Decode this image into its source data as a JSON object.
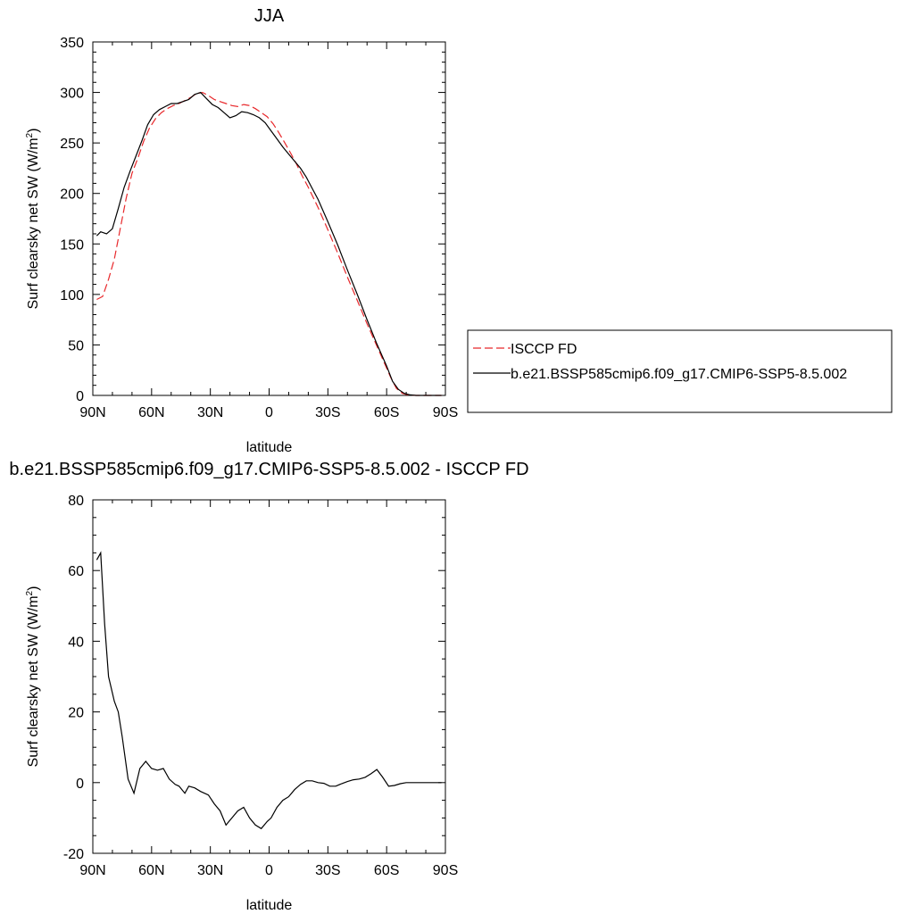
{
  "chart_data": [
    {
      "type": "line",
      "title": "JJA",
      "xlabel": "latitude",
      "ylabel_main": "Surf clearsky net SW (W/m",
      "ylabel_sup": "2",
      "ylabel_tail": ")",
      "xlim": [
        90,
        -90
      ],
      "ylim": [
        0,
        350
      ],
      "xticks": [
        90,
        60,
        30,
        0,
        -30,
        -60,
        -90
      ],
      "xtick_labels": [
        "90N",
        "60N",
        "30N",
        "0",
        "30S",
        "60S",
        "90S"
      ],
      "yticks": [
        0,
        50,
        100,
        150,
        200,
        250,
        300,
        350
      ],
      "ytick_labels": [
        "0",
        "50",
        "100",
        "150",
        "200",
        "250",
        "300",
        "350"
      ],
      "legend_position": "right",
      "series": [
        {
          "name": "ISCCP FD",
          "color": "#e8282b",
          "dash": "dashed",
          "x": [
            88,
            85,
            82,
            79,
            76,
            73,
            70,
            67,
            64,
            61,
            58,
            55,
            52,
            49,
            46,
            43,
            40,
            37,
            34,
            31,
            28,
            25,
            22,
            19,
            16,
            13,
            10,
            7,
            4,
            1,
            -2,
            -5,
            -8,
            -11,
            -14,
            -17,
            -20,
            -25,
            -30,
            -35,
            -40,
            -45,
            -50,
            -55,
            -60,
            -62,
            -65,
            -68,
            -71,
            -75,
            -80,
            -85,
            -88
          ],
          "values": [
            95,
            98,
            115,
            135,
            165,
            195,
            220,
            235,
            252,
            265,
            274,
            280,
            284,
            287,
            289,
            292,
            295,
            299,
            300,
            297,
            293,
            291,
            289,
            287,
            286,
            288,
            287,
            284,
            280,
            276,
            269,
            260,
            250,
            240,
            229,
            217,
            206,
            186,
            164,
            141,
            117,
            94,
            71,
            49,
            27,
            18,
            7,
            2,
            0.5,
            0,
            0,
            0,
            0
          ]
        },
        {
          "name": "b.e21.BSSP585cmip6.f09_g17.CMIP6-SSP5-8.5.002",
          "color": "#000000",
          "dash": "solid",
          "x": [
            88,
            86,
            83,
            80,
            77,
            74,
            71,
            68,
            65,
            62,
            59,
            56,
            53,
            50,
            47,
            44,
            41,
            38,
            35,
            32,
            29,
            26,
            23,
            20,
            17,
            14,
            11,
            8,
            5,
            2,
            -1,
            -4,
            -7,
            -10,
            -13,
            -16,
            -19,
            -22,
            -25,
            -30,
            -35,
            -40,
            -45,
            -50,
            -55,
            -60,
            -63,
            -66,
            -69,
            -72,
            -75,
            -80,
            -85,
            -88
          ],
          "values": [
            158,
            162,
            160,
            165,
            185,
            206,
            222,
            237,
            252,
            268,
            278,
            283,
            286,
            289,
            289,
            291,
            293,
            298,
            300,
            294,
            288,
            285,
            280,
            275,
            277,
            281,
            280,
            278,
            275,
            270,
            262,
            254,
            246,
            239,
            232,
            225,
            216,
            205,
            194,
            172,
            149,
            124,
            100,
            75,
            51,
            29,
            14,
            6,
            2,
            0.5,
            0,
            0,
            0,
            0
          ]
        }
      ]
    },
    {
      "type": "line",
      "title": "b.e21.BSSP585cmip6.f09_g17.CMIP6-SSP5-8.5.002 - ISCCP FD",
      "xlabel": "latitude",
      "ylabel_main": "Surf clearsky net SW (W/m",
      "ylabel_sup": "2",
      "ylabel_tail": ")",
      "xlim": [
        90,
        -90
      ],
      "ylim": [
        -20,
        80
      ],
      "xticks": [
        90,
        60,
        30,
        0,
        -30,
        -60,
        -90
      ],
      "xtick_labels": [
        "90N",
        "60N",
        "30N",
        "0",
        "30S",
        "60S",
        "90S"
      ],
      "yticks": [
        -20,
        0,
        20,
        40,
        60,
        80
      ],
      "ytick_labels": [
        "-20",
        "0",
        "20",
        "40",
        "60",
        "80"
      ],
      "series": [
        {
          "color": "#000000",
          "dash": "solid",
          "x": [
            88,
            86,
            84,
            82,
            79,
            77,
            75,
            72,
            69,
            66,
            63,
            60,
            57,
            54,
            51,
            48,
            46,
            43,
            41,
            38,
            35,
            31,
            28,
            25,
            22,
            19,
            16,
            13,
            10,
            7,
            4,
            1,
            -1,
            -4,
            -7,
            -10,
            -13,
            -16,
            -19,
            -22,
            -25,
            -28,
            -31,
            -34,
            -37,
            -40,
            -43,
            -46,
            -49,
            -52,
            -55,
            -58,
            -61,
            -64,
            -67,
            -70,
            -73,
            -76,
            -80,
            -84,
            -88
          ],
          "values": [
            63,
            65,
            45,
            30,
            23,
            20,
            13,
            1,
            -3,
            4,
            6,
            4,
            3.5,
            4,
            1,
            -0.5,
            -1,
            -3,
            -1,
            -1.5,
            -2.5,
            -3.5,
            -6,
            -8,
            -12,
            -10,
            -8,
            -7,
            -10,
            -12,
            -13,
            -11,
            -10,
            -7,
            -5,
            -4,
            -2,
            -0.5,
            0.5,
            0.5,
            0,
            -0.2,
            -1,
            -1,
            -0.3,
            0.3,
            0.8,
            1,
            1.5,
            2.5,
            3.7,
            1.5,
            -1,
            -0.8,
            -0.3,
            0,
            0,
            0,
            0,
            0,
            0
          ]
        }
      ]
    }
  ]
}
